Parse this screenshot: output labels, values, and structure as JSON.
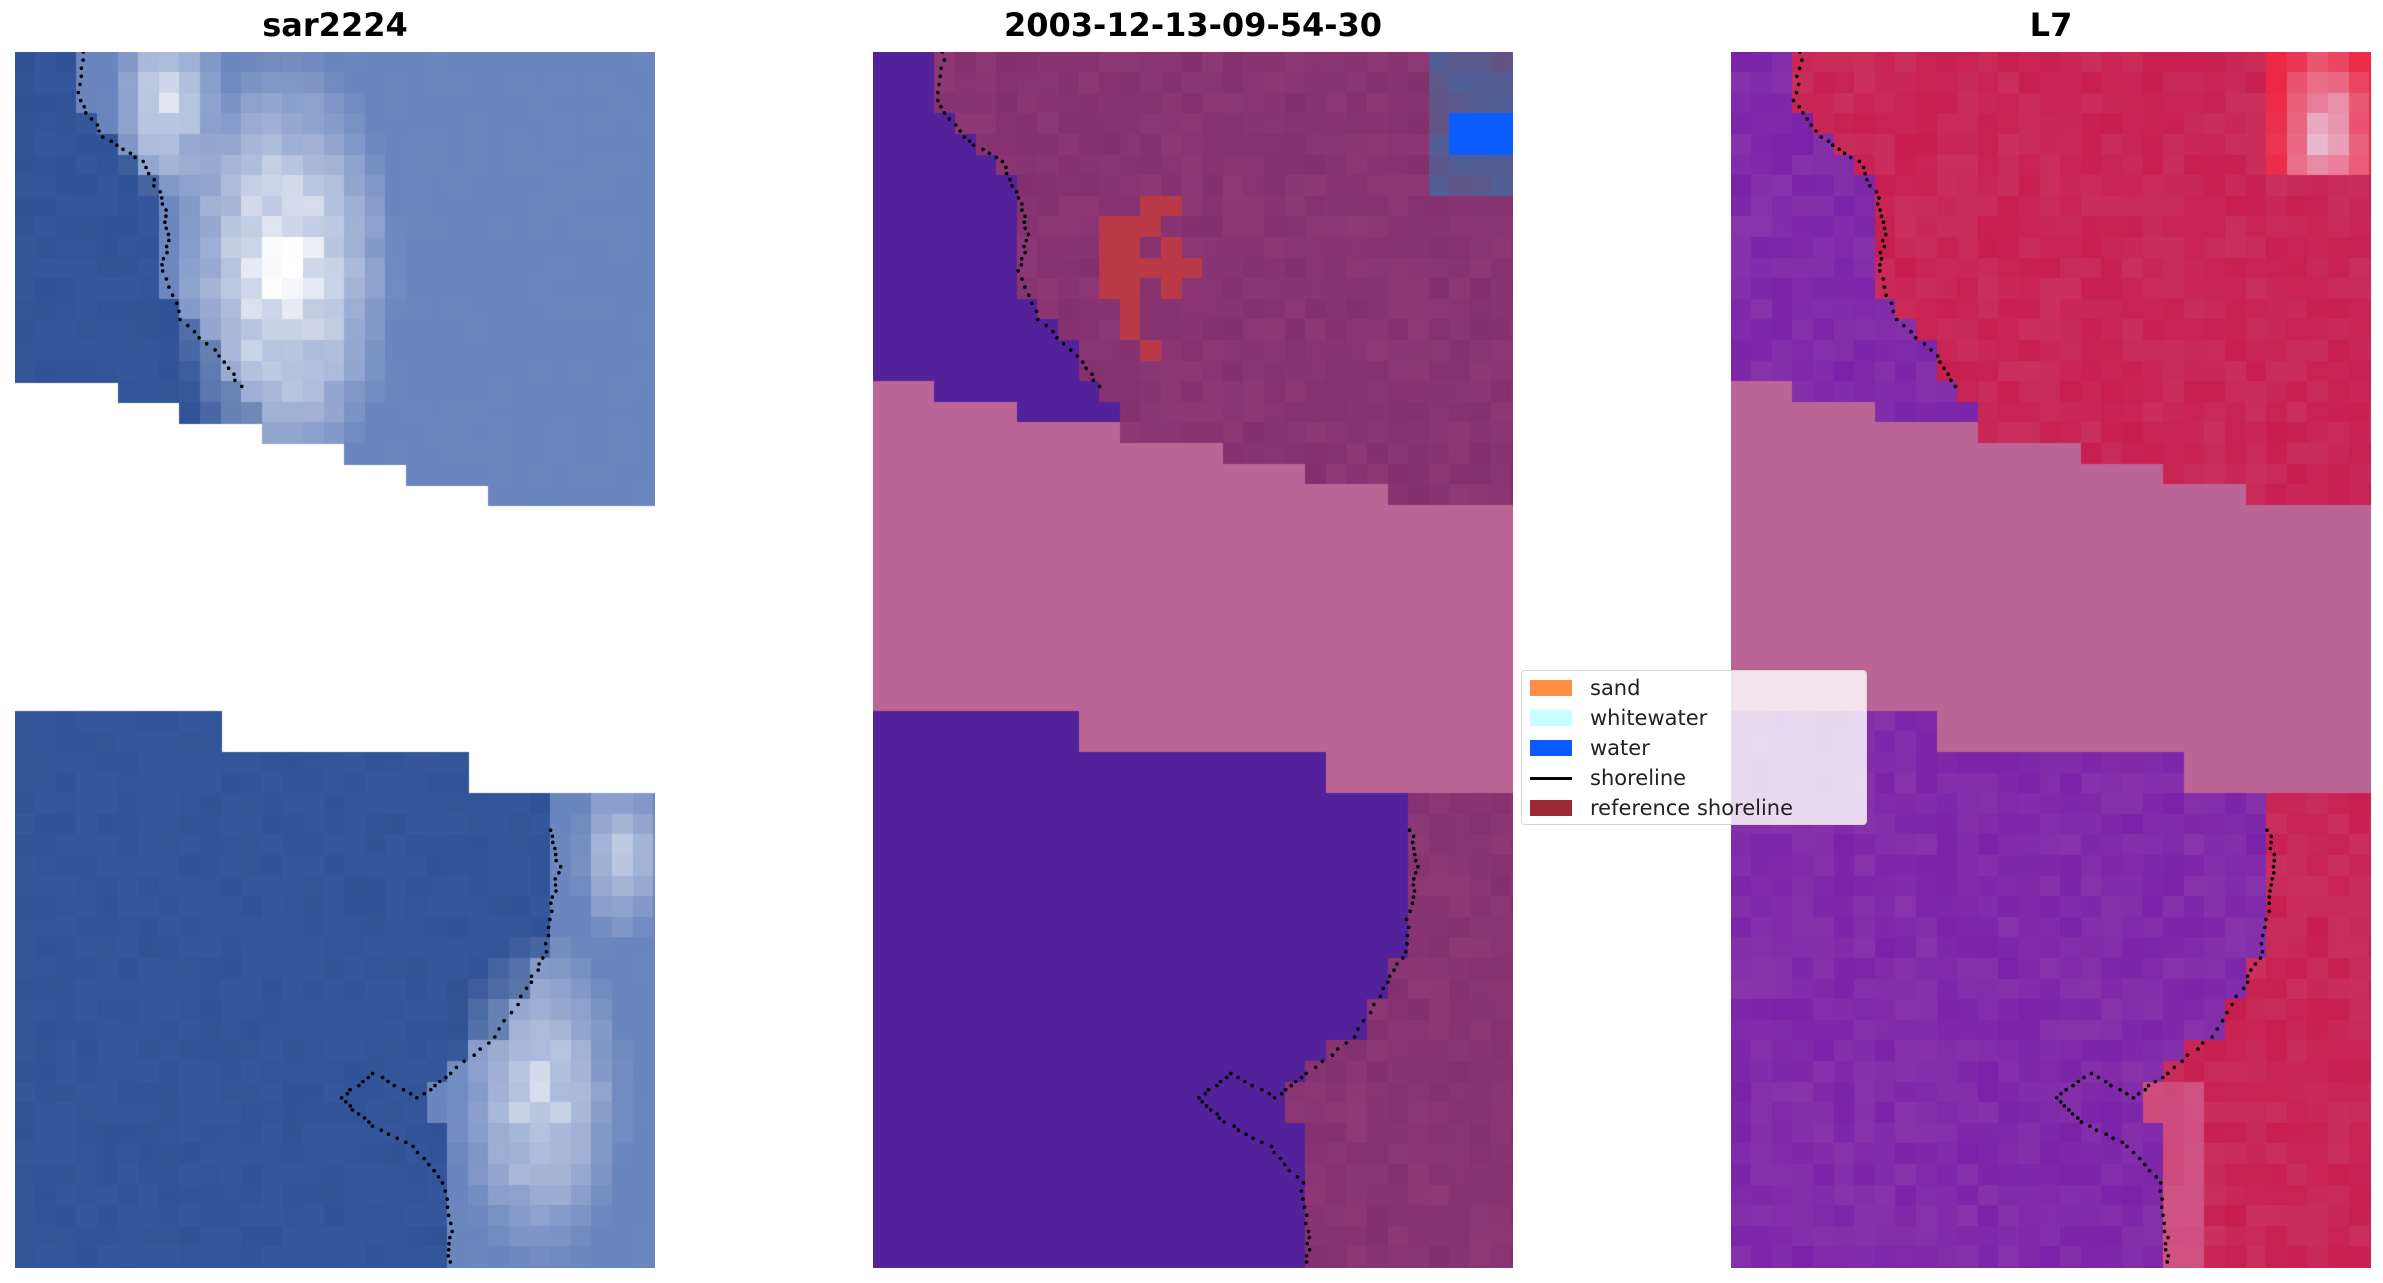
{
  "panels": [
    {
      "id": "p1",
      "title": "sar2224",
      "render": "rgb"
    },
    {
      "id": "p2",
      "title": "2003-12-13-09-54-30",
      "render": "classified"
    },
    {
      "id": "p3",
      "title": "L7",
      "render": "index"
    }
  ],
  "legend": {
    "items": [
      {
        "label": "sand",
        "color": "#ff8f45",
        "kind": "patch"
      },
      {
        "label": "whitewater",
        "color": "#c8fffc",
        "kind": "patch"
      },
      {
        "label": "water",
        "color": "#0a5cff",
        "kind": "patch"
      },
      {
        "label": "shoreline",
        "color": "#000000",
        "kind": "line"
      },
      {
        "label": "reference shoreline",
        "color": "#9b2a35",
        "kind": "patch"
      }
    ]
  },
  "colors": {
    "rgb_water": "#2f5396",
    "rgb_land": "#6a86be",
    "rgb_cloud": "#ffffff",
    "class_water": "#53229a",
    "class_land": "#84306f",
    "class_nodata": "#bb6596",
    "index_water": "#7a23a8",
    "index_land": "#c81e4e",
    "index_nodata": "#bb6596"
  }
}
